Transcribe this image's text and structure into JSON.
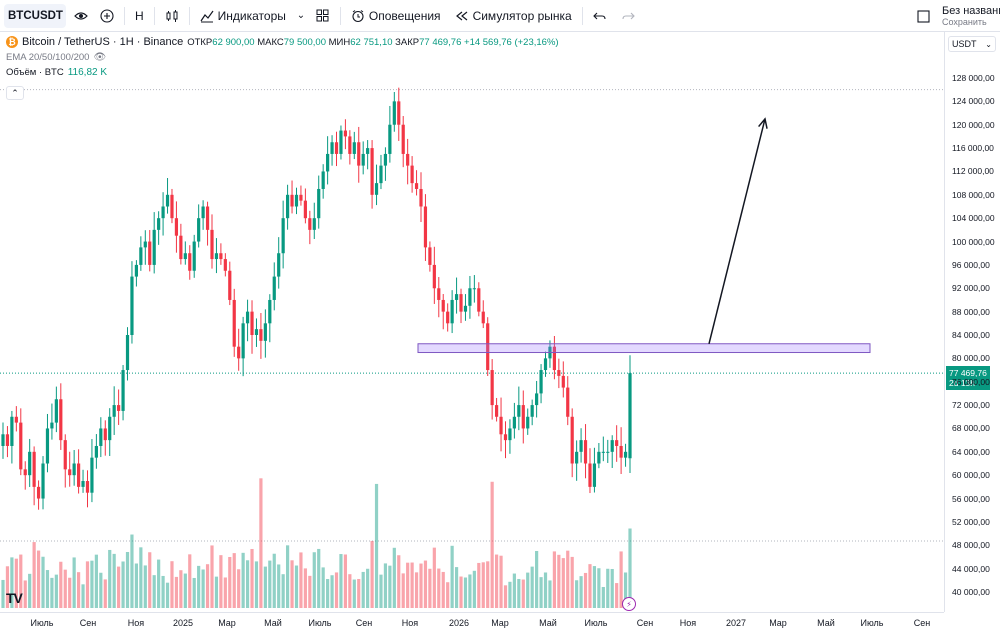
{
  "toolbar": {
    "symbol": "BTCUSDT",
    "interval": "Н",
    "indicators_label": "Индикаторы",
    "alerts_label": "Оповещения",
    "replay_label": "Симулятор рынка",
    "layout_title": "Без названия",
    "save_label": "Сохранить"
  },
  "legend": {
    "title": "Bitcoin / TetherUS · 1Н · Binance",
    "open_label": "ОТКР",
    "open_value": "62 900,00",
    "high_label": "МАКС",
    "high_value": "79 500,00",
    "low_label": "МИН",
    "low_value": "62 751,10",
    "close_label": "ЗАКР",
    "close_value": "77 469,76",
    "change": "+14 569,76 (+23,16%)",
    "ema_label": "EMA 20/50/100/200",
    "volume_label": "Объём · BTC",
    "volume_value": "116,82 K"
  },
  "price_axis": {
    "currency": "USDT",
    "current_price": "77 469,76",
    "countdown": "2d 13h"
  },
  "chart_data": {
    "type": "candlestick",
    "symbol": "BTCUSDT",
    "interval": "1Н",
    "y_ticks": [
      40000,
      44000,
      48000,
      52000,
      56000,
      60000,
      64000,
      68000,
      72000,
      76000,
      80000,
      84000,
      88000,
      92000,
      96000,
      100000,
      104000,
      108000,
      112000,
      116000,
      120000,
      124000,
      128000
    ],
    "y_tick_labels": [
      "40 000,00",
      "44 000,00",
      "48 000,00",
      "52 000,00",
      "56 000,00",
      "60 000,00",
      "64 000,00",
      "68 000,00",
      "72 000,00",
      "76 000,00",
      "80 000,00",
      "84 000,00",
      "88 000,00",
      "92 000,00",
      "96 000,00",
      "100 000,00",
      "104 000,00",
      "108 000,00",
      "112 000,00",
      "116 000,00",
      "120 000,00",
      "124 000,00",
      "128 000,00"
    ],
    "ylim": [
      37000,
      132000
    ],
    "x_tick_labels": [
      "Июль",
      "Сен",
      "Ноя",
      "2025",
      "Мар",
      "Май",
      "Июль",
      "Сен",
      "Ноя",
      "2026",
      "Мар",
      "Май",
      "Июль",
      "Сен",
      "Ноя",
      "2027",
      "Мар",
      "Май",
      "Июль",
      "Сен"
    ],
    "closes": [
      67000,
      65000,
      70000,
      69000,
      61000,
      60000,
      64000,
      58000,
      56000,
      62000,
      68000,
      69000,
      73000,
      66000,
      61000,
      60000,
      62000,
      58000,
      59000,
      57000,
      63000,
      65000,
      68000,
      66000,
      70000,
      72000,
      71000,
      78000,
      84000,
      94000,
      96000,
      99000,
      100000,
      96000,
      102000,
      104000,
      106000,
      108000,
      104000,
      101000,
      97000,
      98000,
      95000,
      100000,
      104000,
      106000,
      102000,
      97000,
      98000,
      97000,
      95000,
      90000,
      82000,
      80000,
      86000,
      88000,
      84000,
      85000,
      83000,
      86000,
      90000,
      94000,
      98000,
      104000,
      108000,
      106000,
      108000,
      107000,
      104000,
      102000,
      104000,
      109000,
      112000,
      115000,
      117000,
      115000,
      119000,
      118000,
      115000,
      117000,
      113000,
      115000,
      116000,
      108000,
      110000,
      113000,
      115000,
      120000,
      124000,
      120000,
      115000,
      113000,
      110000,
      109000,
      106000,
      99000,
      96000,
      92000,
      90000,
      88000,
      86000,
      90000,
      91000,
      88000,
      89000,
      92000,
      92000,
      88000,
      86000,
      78000,
      72000,
      70000,
      67000,
      66000,
      68000,
      70000,
      72000,
      68000,
      70000,
      72000,
      74000,
      78000,
      80000,
      82000,
      78000,
      77000,
      75000,
      70000,
      62000,
      64000,
      66000,
      62000,
      58000,
      62000,
      64000,
      64000,
      64000,
      66000,
      65000,
      63000,
      64000,
      77470
    ],
    "volume_ticks_hint": "volume bars per candle in lower pane",
    "annotations": [
      {
        "type": "rectangle",
        "price_low": 81000,
        "price_high": 82500
      },
      {
        "type": "arrow",
        "from_price": 82500,
        "to_price": 121000
      }
    ],
    "horizontal_lines": [
      126000,
      77469.76
    ]
  }
}
